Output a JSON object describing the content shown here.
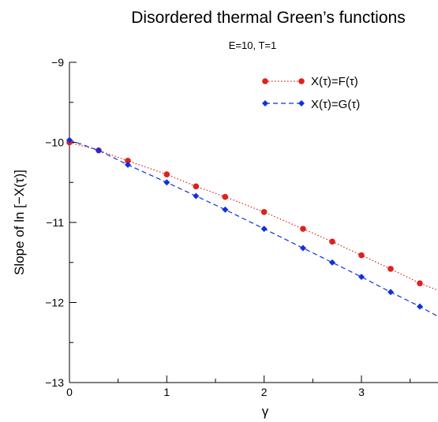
{
  "chart_data": {
    "type": "line",
    "title": "Disordered thermal Green’s functions",
    "subtitle": "E=10, T=1",
    "xlabel": "γ",
    "ylabel": "Slope of ln [−X(τ)]",
    "xlim": [
      0,
      3.7
    ],
    "ylim": [
      -13,
      -9
    ],
    "xticks": [
      0,
      1,
      2,
      3
    ],
    "xtick_labels": [
      "0",
      "1",
      "2",
      "3"
    ],
    "yticks": [
      -13,
      -12,
      -11,
      -10,
      -9
    ],
    "ytick_labels": [
      "−13",
      "−12",
      "−11",
      "−10",
      "−9"
    ],
    "grid": false,
    "legend_position": "top-right",
    "series": [
      {
        "name": "X(τ)=F(τ)",
        "color": "#e0201b",
        "marker": "circle",
        "line_style": "dotted",
        "x": [
          0,
          0.3,
          0.6,
          1.0,
          1.3,
          1.6,
          2.0,
          2.4,
          2.7,
          3.0,
          3.3,
          3.6
        ],
        "y": [
          -10.0,
          -10.1,
          -10.23,
          -10.4,
          -10.55,
          -10.68,
          -10.87,
          -11.08,
          -11.24,
          -11.41,
          -11.58,
          -11.76
        ],
        "line_end": {
          "x": 3.9,
          "y": -11.9
        }
      },
      {
        "name": "X(τ)=G(τ)",
        "color": "#1030e0",
        "marker": "diamond",
        "line_style": "dashed",
        "x": [
          0,
          0.3,
          0.6,
          1.0,
          1.3,
          1.6,
          2.0,
          2.4,
          2.7,
          3.0,
          3.3,
          3.6
        ],
        "y": [
          -9.97,
          -10.1,
          -10.28,
          -10.5,
          -10.67,
          -10.84,
          -11.08,
          -11.32,
          -11.5,
          -11.68,
          -11.87,
          -12.05
        ],
        "line_end": {
          "x": 3.9,
          "y": -12.25
        }
      }
    ]
  }
}
